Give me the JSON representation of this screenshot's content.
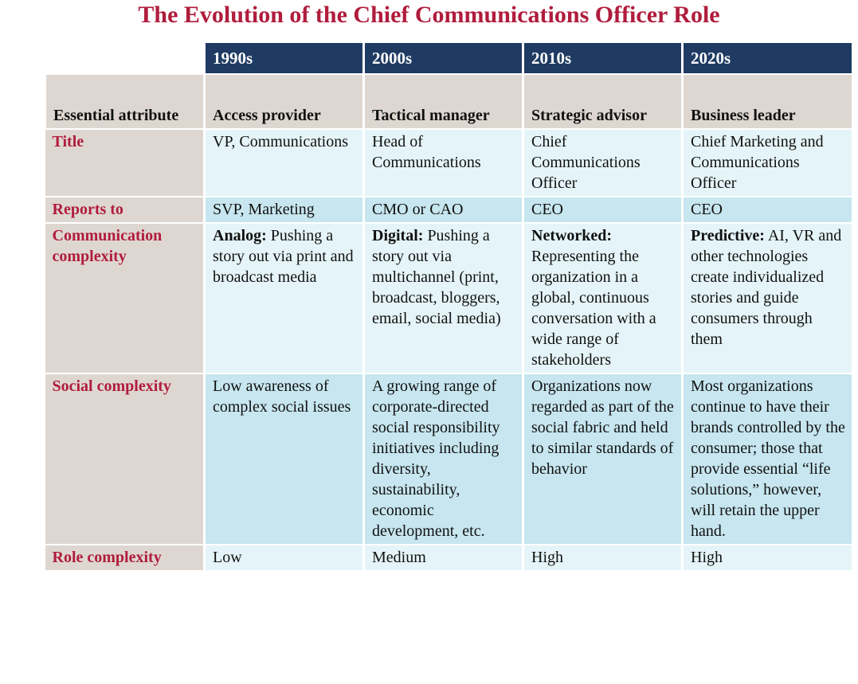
{
  "title": "The Evolution of the Chief Communications Officer Role",
  "table": {
    "decades": [
      "1990s",
      "2000s",
      "2010s",
      "2020s"
    ],
    "attribute_header": "Essential attribute",
    "roles": [
      "Access provider",
      "Tactical manager",
      "Strategic advisor",
      "Business leader"
    ],
    "rows": [
      {
        "label": "Title",
        "cells": [
          "VP, Communications",
          "Head of Communications",
          "Chief Communications Officer",
          "Chief Marketing and Communications Officer"
        ]
      },
      {
        "label": "Reports to",
        "cells": [
          "SVP, Marketing",
          "CMO or CAO",
          "CEO",
          "CEO"
        ]
      },
      {
        "label": "Communication complexity",
        "cells": [
          {
            "lead": "Analog:",
            "text": "Pushing a story out via print and broadcast media"
          },
          {
            "lead": "Digital:",
            "text": "Pushing a story out via multichannel (print, broadcast, bloggers, email, social media)"
          },
          {
            "lead": "Networked:",
            "text": "Representing the organization in a global, continuous conversation with a wide range of stakeholders"
          },
          {
            "lead": "Predictive:",
            "text": "AI, VR and other technologies create individualized stories and guide consumers through them"
          }
        ]
      },
      {
        "label": "Social complexity",
        "cells": [
          "Low awareness of complex social issues",
          "A growing range of corporate-directed social responsibility initiatives including diversity, sustainability, economic development, etc.",
          "Organizations now regarded as part of the social fabric and held to similar standards of behavior",
          "Most organizations continue to have their brands controlled by the consumer; those that provide essential “life solutions,” however, will retain the upper hand."
        ]
      },
      {
        "label": "Role complexity",
        "cells": [
          "Low",
          "Medium",
          "High",
          "High"
        ]
      }
    ]
  }
}
